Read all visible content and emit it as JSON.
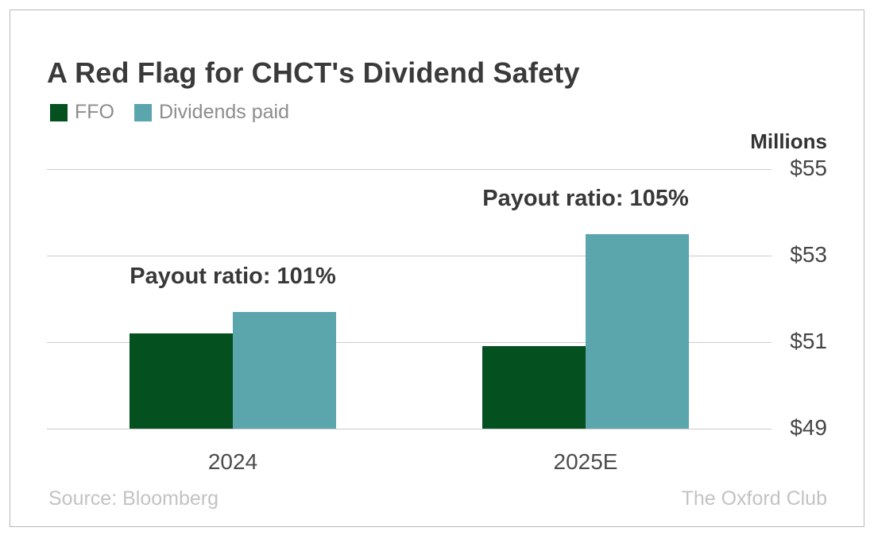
{
  "header": {
    "title": "A Red Flag for CHCT's Dividend Safety"
  },
  "footer": {
    "source": "Source: Bloomberg",
    "brand": "The Oxford Club"
  },
  "colors": {
    "ffo": "#05501f",
    "dividends": "#5ba5ad",
    "gridline": "#cccccc",
    "frame_border": "#b8b8b8",
    "title_text": "#3a3a3a",
    "legend_text": "#8d8d8d",
    "footer_text": "#c3c3c3"
  },
  "chart_data": {
    "type": "bar",
    "title": "A Red Flag for CHCT's Dividend Safety",
    "unit_label": "Millions",
    "categories": [
      "2024",
      "2025E"
    ],
    "series": [
      {
        "name": "FFO",
        "color": "#05501f",
        "values": [
          51.2,
          50.9
        ]
      },
      {
        "name": "Dividends paid",
        "color": "#5ba5ad",
        "values": [
          51.7,
          53.5
        ]
      }
    ],
    "annotations": [
      {
        "text": "Payout ratio: 101%",
        "category": "2024"
      },
      {
        "text": "Payout ratio: 105%",
        "category": "2025E"
      }
    ],
    "y_axis": {
      "side": "right",
      "min": 49,
      "max": 55,
      "ticks": [
        "$55",
        "$53",
        "$51",
        "$49"
      ],
      "tick_values": [
        55,
        53,
        51,
        49
      ]
    },
    "grid": true,
    "legend_position": "top-left",
    "xlabel": "",
    "ylabel": "Millions"
  }
}
